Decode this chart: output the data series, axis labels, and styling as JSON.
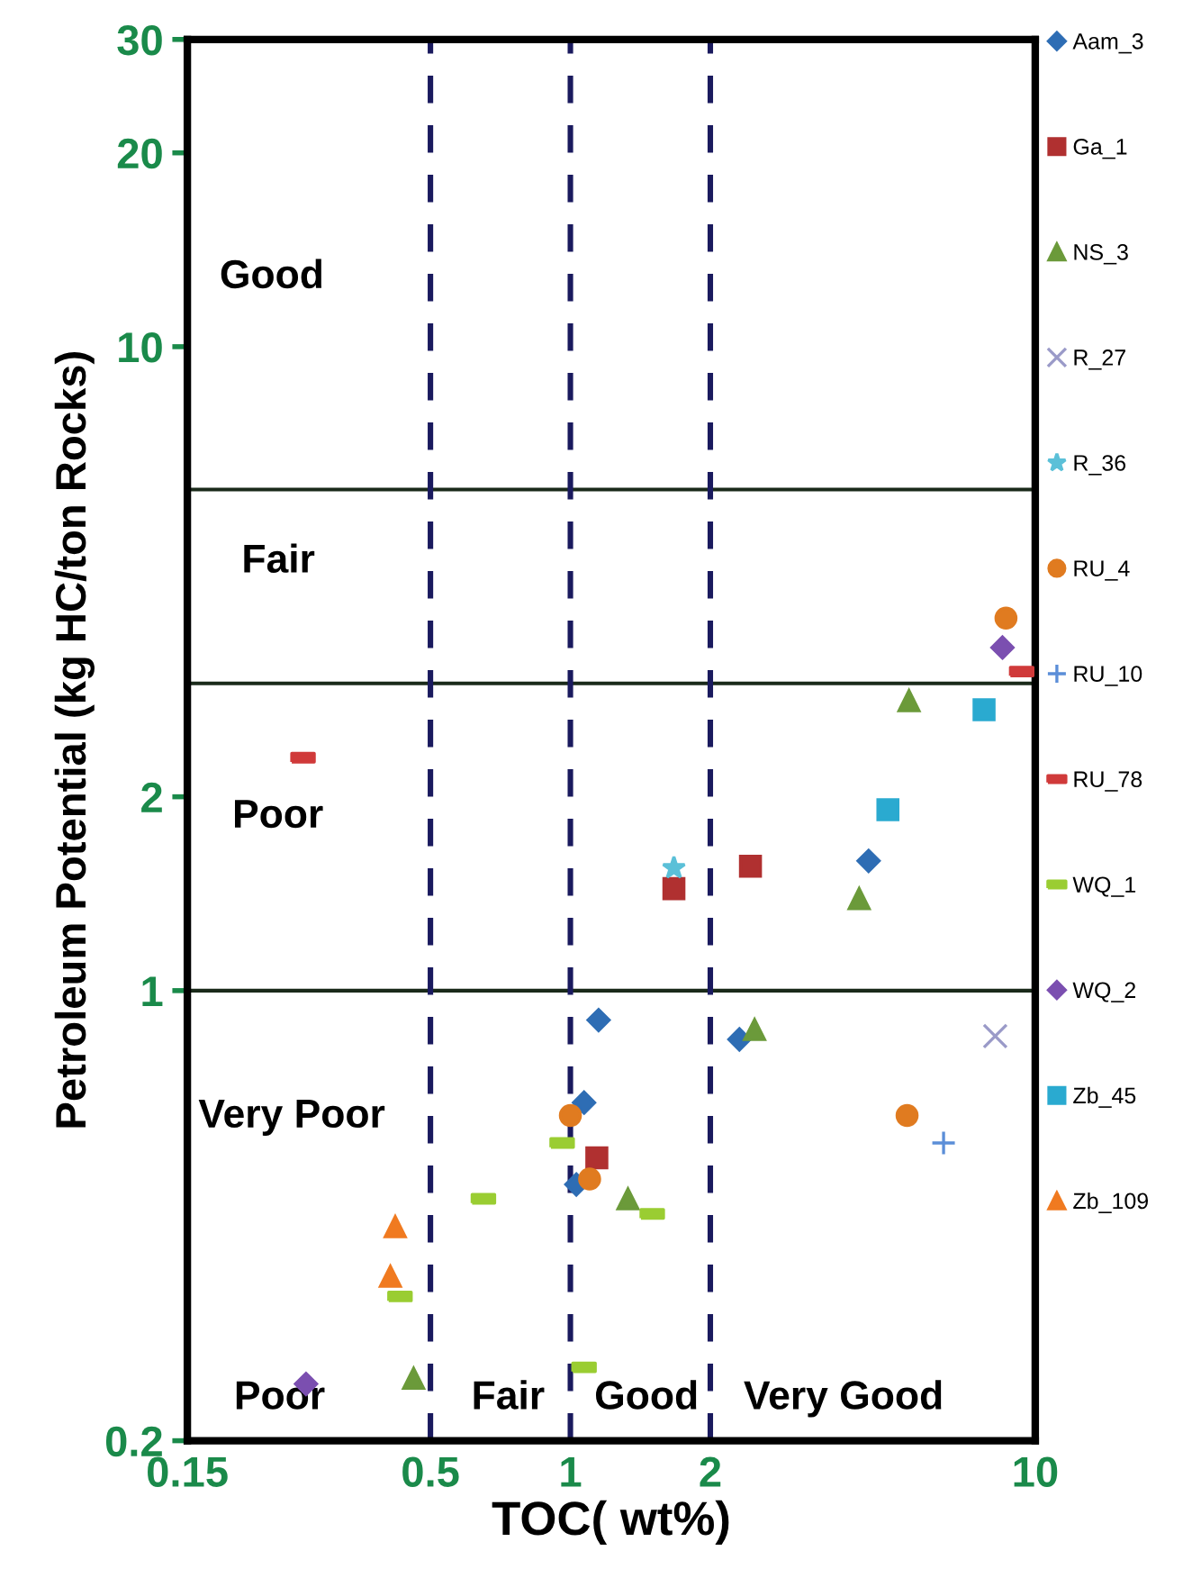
{
  "chart_data": {
    "type": "scatter",
    "xlabel": "TOC( wt%)",
    "ylabel": "Petroleum Potential (kg HC/ton Rocks)",
    "log": "xy",
    "xlim": [
      0.15,
      10
    ],
    "ylim": [
      0.2,
      30
    ],
    "xticks": [
      0.15,
      0.5,
      1,
      2,
      10
    ],
    "yticks": [
      0.2,
      1,
      2,
      10,
      20,
      30
    ],
    "grid": false,
    "legend": "right",
    "marker": "square",
    "series": [
      {
        "name": "Aam_3",
        "color": "#2e6db4",
        "marker": "diamond",
        "x": [
          4.38,
          1.15,
          2.31,
          1.07,
          1.03
        ],
        "values": [
          1.59,
          0.9,
          0.84,
          0.67,
          0.5
        ]
      },
      {
        "name": "Ga_1",
        "color": "#b03030",
        "marker": "square",
        "x": [
          1.67,
          2.44,
          1.14
        ],
        "values": [
          1.44,
          1.56,
          0.55
        ]
      },
      {
        "name": "NS_3",
        "color": "#6b9a3a",
        "marker": "triangle",
        "x": [
          5.35,
          4.18,
          2.49,
          1.33,
          0.46
        ],
        "values": [
          2.82,
          1.39,
          0.87,
          0.475,
          0.25
        ]
      },
      {
        "name": "R_27",
        "color": "#9a9ac8",
        "marker": "cross",
        "x": [
          8.2
        ],
        "values": [
          0.85
        ]
      },
      {
        "name": "R_36",
        "color": "#5bc0d8",
        "marker": "star",
        "x": [
          1.67
        ],
        "values": [
          1.55
        ]
      },
      {
        "name": "RU_4",
        "color": "#e07b20",
        "marker": "circle",
        "x": [
          8.65,
          1.0,
          5.3,
          1.1
        ],
        "values": [
          3.79,
          0.64,
          0.64,
          0.51
        ]
      },
      {
        "name": "RU_10",
        "color": "#5b8ed8",
        "marker": "plus",
        "x": [
          6.35
        ],
        "values": [
          0.58
        ]
      },
      {
        "name": "RU_78",
        "color": "#d03a3a",
        "x": [
          9.35,
          0.266
        ],
        "values": [
          3.13,
          2.3
        ]
      },
      {
        "name": "WQ_1",
        "color": "#9acd32",
        "x": [
          0.96,
          0.65,
          1.5,
          0.43,
          1.07
        ],
        "values": [
          0.58,
          0.475,
          0.45,
          0.335,
          0.26
        ]
      },
      {
        "name": "WQ_2",
        "color": "#7b4fb0",
        "marker": "diamond",
        "x": [
          8.5,
          0.27
        ],
        "values": [
          3.41,
          0.245
        ]
      },
      {
        "name": "Zb_45",
        "color": "#2aaad0",
        "marker": "square",
        "x": [
          7.76,
          4.82
        ],
        "values": [
          2.73,
          1.91
        ]
      },
      {
        "name": "Zb_109",
        "color": "#f07a20",
        "marker": "triangle",
        "x": [
          0.42,
          0.41
        ],
        "values": [
          0.43,
          0.36
        ]
      }
    ],
    "ref_lines": [
      {
        "axis": "y",
        "value": 1,
        "color": "#1a2a1a",
        "line_style": "solid"
      },
      {
        "axis": "y",
        "value": 3,
        "color": "#1a2a1a",
        "line_style": "solid"
      },
      {
        "axis": "y",
        "value": 6,
        "color": "#1a2a1a",
        "line_style": "solid"
      },
      {
        "axis": "x",
        "value": 0.5,
        "color": "#1a1a5e",
        "line_style": "dashed"
      },
      {
        "axis": "x",
        "value": 1,
        "color": "#1a1a5e",
        "line_style": "dashed"
      },
      {
        "axis": "x",
        "value": 2,
        "color": "#1a1a5e",
        "line_style": "dashed"
      }
    ],
    "annotations": [
      "Good",
      "Fair",
      "Poor",
      "Very Poor",
      "Poor",
      "Fair",
      "Good",
      "Very Good"
    ]
  }
}
